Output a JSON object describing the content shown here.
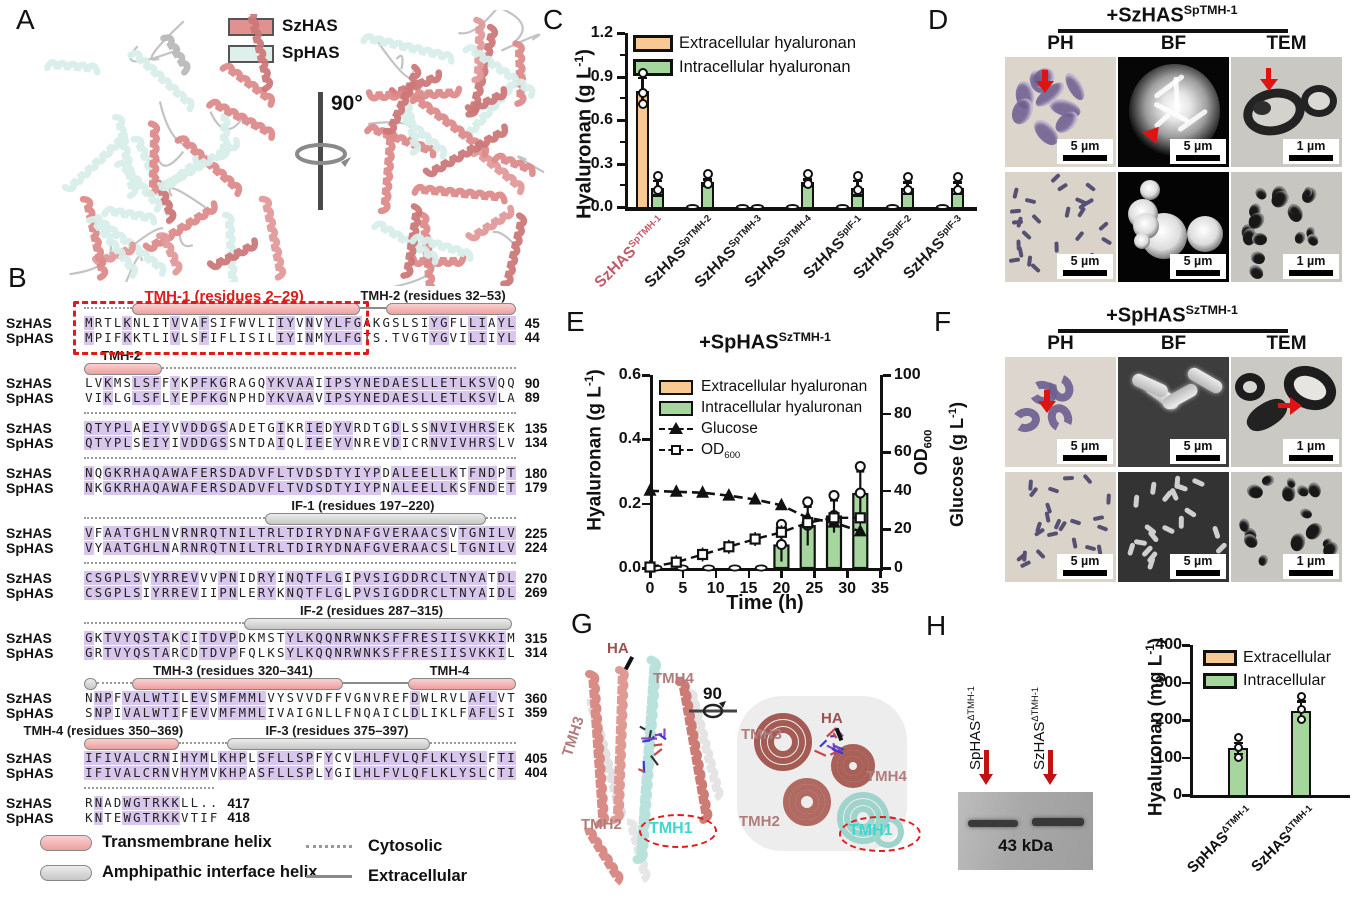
{
  "panel_labels": {
    "a": "A",
    "b": "B",
    "c": "C",
    "d": "D",
    "e": "E",
    "f": "F",
    "g": "G",
    "h": "H"
  },
  "panel_a": {
    "legend": [
      {
        "label": "SzHAS",
        "color": "#e29191"
      },
      {
        "label": "SpHAS",
        "color": "#ddf0ec"
      }
    ],
    "rotation_label": "90°"
  },
  "alignment": {
    "row_names": [
      "SzHAS",
      "SpHAS"
    ],
    "highlight_color": "#d8c6ec",
    "groups": [
      {
        "labels": [
          {
            "text": "TMH-1 (residues 2–29)",
            "color": "#e01b1b",
            "x": 14,
            "size": 15
          },
          {
            "text": "TMH-2 (residues 32–53)",
            "color": "#1a1a1a",
            "x": 64,
            "size": 13
          }
        ],
        "track": [
          {
            "type": "dots",
            "s": 0,
            "e": 11
          },
          {
            "type": "tmh",
            "s": 11,
            "e": 64
          },
          {
            "type": "solid",
            "s": 64,
            "e": 70
          },
          {
            "type": "tmh",
            "s": 70,
            "e": 100
          }
        ],
        "redbox": [
          -1.5,
          64
        ],
        "rows": [
          {
            "seq": "MRTLKNLITVVAFSIFWVLIIYVNVYLFGAKGSLSIYGFLLIAYL",
            "num": "45"
          },
          {
            "seq": "MPIFKKTLIVLSFIFLISILIYINMYLFGTS.TVGTYGVILIIYL",
            "num": "44"
          }
        ]
      },
      {
        "labels": [
          {
            "text": "TMH-2",
            "color": "#1a1a1a",
            "x": 4,
            "size": 13
          }
        ],
        "track": [
          {
            "type": "tmh",
            "s": 0,
            "e": 18
          },
          {
            "type": "dots",
            "s": 18,
            "e": 100
          }
        ],
        "rows": [
          {
            "seq": "LVKMSLSFFYKPFKGRAGQYKVAAIIPSYNEDAESLLETLKSVQQ",
            "num": "90"
          },
          {
            "seq": "VIKLGLSFLYEPFKGNPHDYKVAAVIPSYNEDAESLLETLKSVLA",
            "num": "89"
          }
        ]
      },
      {
        "labels": [],
        "track": [
          {
            "type": "dots",
            "s": 0,
            "e": 100
          }
        ],
        "rows": [
          {
            "seq": "QTYPLAEIYVVDDGSADETGIKRIEDYVRDTGDLSSNVIVHRSEK",
            "num": "135"
          },
          {
            "seq": "QTYPLSEIYIVDDGSSNTDAIQLIEEYVNREVDICRNVIVHRSLV",
            "num": "134"
          }
        ]
      },
      {
        "labels": [],
        "track": [
          {
            "type": "dots",
            "s": 0,
            "e": 100
          }
        ],
        "rows": [
          {
            "seq": "NQGKRHAQAWAFERSDADVFLTVDSDTYIYPDALEELLKTFNDPT",
            "num": "180"
          },
          {
            "seq": "NKGKRHAQAWAFERSDADVFLTVDSDTYIYPNALEELLKSFNDET",
            "num": "179"
          }
        ]
      },
      {
        "labels": [
          {
            "text": "IF-1 (residues 197–220)",
            "color": "#1a1a1a",
            "x": 48,
            "size": 13
          }
        ],
        "track": [
          {
            "type": "dots",
            "s": 0,
            "e": 42
          },
          {
            "type": "if",
            "s": 42,
            "e": 93
          },
          {
            "type": "dots",
            "s": 93,
            "e": 100
          }
        ],
        "rows": [
          {
            "seq": "VFAATGHLNVRNRQTNILTRLTDIRYDNAFGVERAACSVTGNILV",
            "num": "225"
          },
          {
            "seq": "VYAATGHLNARNRQTNILTRLTDIRYDNAFGVERAACSLTGNILV",
            "num": "224"
          }
        ]
      },
      {
        "labels": [],
        "track": [
          {
            "type": "dots",
            "s": 0,
            "e": 100
          }
        ],
        "rows": [
          {
            "seq": "CSGPLSVYRREVVVPNIDRYINQTFLGIPVSIGDDRCLTNYATDL",
            "num": "270"
          },
          {
            "seq": "CSGPLSIYRREVIIPNLERYKNQTFLGLPVSIGDDRCLTNYAIDL",
            "num": "269"
          }
        ]
      },
      {
        "labels": [
          {
            "text": "IF-2 (residues 287–315)",
            "color": "#1a1a1a",
            "x": 50,
            "size": 13
          }
        ],
        "track": [
          {
            "type": "dots",
            "s": 0,
            "e": 37
          },
          {
            "type": "if",
            "s": 37,
            "e": 99
          }
        ],
        "rows": [
          {
            "seq": "GKTVYQSTAKCITDVPDKMSTYLKQQNRWNKSFFRESIISVKKIM",
            "num": "315"
          },
          {
            "seq": "GRTVYQSTARCDTDVPFQLKSYLKQQNRWNKSFFRESIISVKKIL",
            "num": "314"
          }
        ]
      },
      {
        "labels": [
          {
            "text": "TMH-3 (residues 320–341)",
            "color": "#1a1a1a",
            "x": 16,
            "size": 13
          },
          {
            "text": "TMH-4",
            "color": "#1a1a1a",
            "x": 80,
            "size": 13
          }
        ],
        "track": [
          {
            "type": "if",
            "s": 0,
            "e": 3
          },
          {
            "type": "dots",
            "s": 3,
            "e": 11
          },
          {
            "type": "tmh",
            "s": 11,
            "e": 60
          },
          {
            "type": "solid",
            "s": 60,
            "e": 75
          },
          {
            "type": "tmh",
            "s": 75,
            "e": 100
          }
        ],
        "rows": [
          {
            "seq": "NNPFVALWTILEVSMFMMLVYSVVDFFVGNVREFDWLRVLAFLVT",
            "num": "360"
          },
          {
            "seq": "SNPIVALWTIFEVVMFMMLIVAIGNLLFNQAICLDLIKLFAFLSI",
            "num": "359"
          }
        ]
      },
      {
        "labels": [
          {
            "text": "TMH-4 (residues 350–369)",
            "color": "#1a1a1a",
            "x": -14,
            "size": 13
          },
          {
            "text": "IF-3 (residues 375–397)",
            "color": "#1a1a1a",
            "x": 42,
            "size": 13
          }
        ],
        "track": [
          {
            "type": "tmh",
            "s": 0,
            "e": 22
          },
          {
            "type": "dots",
            "s": 22,
            "e": 33
          },
          {
            "type": "if",
            "s": 33,
            "e": 80
          },
          {
            "type": "dots",
            "s": 80,
            "e": 100
          }
        ],
        "rows": [
          {
            "seq": "IFIVALCRNIHYMLKHPLSFLLSPFYCVLHLFVLQFLKLYSLFTI",
            "num": "405"
          },
          {
            "seq": "IFIVALCRNVHYMVKHPASFLLSPLYGILHLFVLQFLKLYSLCTI",
            "num": "404"
          }
        ]
      },
      {
        "labels": [],
        "track": [
          {
            "type": "dots",
            "s": 0,
            "e": 30
          }
        ],
        "rows": [
          {
            "seq": "RNADWGTRKKLL..",
            "num": "417"
          },
          {
            "seq": "KNTEWGTRKKVTIF",
            "num": "418"
          }
        ]
      }
    ],
    "legend": [
      {
        "swatch": "tmh",
        "label": "Transmembrane helix"
      },
      {
        "swatch": "if",
        "label": "Amphipathic interface helix"
      },
      {
        "swatch": "dots",
        "label": "Cytosolic"
      },
      {
        "swatch": "solid",
        "label": "Extracellular"
      }
    ]
  },
  "chart_c": {
    "type": "bar",
    "ylabel": "Hyaluronan (g L^{-1})",
    "ylim": [
      0,
      1.2
    ],
    "yticks": [
      "0.0",
      "0.3",
      "0.6",
      "0.9",
      "1.2"
    ],
    "legend": [
      "Extracellular hyaluronan",
      "Intracellular hyaluronan"
    ],
    "colors": {
      "extracellular": "#f8c993",
      "intracellular": "#a6d69e"
    },
    "categories": [
      "SzHAS^{SpTMH-1}",
      "SzHAS^{SpTMH-2}",
      "SzHAS^{SpTMH-3}",
      "SzHAS^{SpTMH-4}",
      "SzHAS^{SpIF-1}",
      "SzHAS^{SpIF-2}",
      "SzHAS^{SpIF-3}"
    ],
    "category_colors": [
      "#c05a6a",
      "#1a1a1a",
      "#1a1a1a",
      "#1a1a1a",
      "#1a1a1a",
      "#1a1a1a",
      "#1a1a1a"
    ],
    "series": [
      {
        "name": "Extracellular hyaluronan",
        "values": [
          0.8,
          0,
          0,
          0,
          0,
          0,
          0
        ],
        "err": [
          0.09,
          0,
          0,
          0,
          0,
          0,
          0
        ]
      },
      {
        "name": "Intracellular hyaluronan",
        "values": [
          0.13,
          0.17,
          0,
          0.17,
          0.13,
          0.13,
          0.13
        ],
        "err": [
          0.05,
          0.02,
          0,
          0.02,
          0.05,
          0.04,
          0.04
        ]
      }
    ]
  },
  "panel_d": {
    "title": "+SzHAS^{SpTMH-1}",
    "columns": [
      "PH",
      "BF",
      "TEM"
    ],
    "scale_labels": [
      [
        "5 µm",
        "5 µm",
        "1 µm"
      ],
      [
        "5 µm",
        "5 µm",
        "1 µm"
      ]
    ]
  },
  "chart_e": {
    "type": "line+bar",
    "title": "+SpHAS^{SzTMH-1}",
    "ylabel_left": "Hyaluronan (g L^{-1})",
    "ylim_left": [
      0,
      0.6
    ],
    "yticks_left": [
      "0.0",
      "0.2",
      "0.4",
      "0.6"
    ],
    "ylabel_right": "OD_{600}",
    "ylabel_right2": "Glucose (g L^{-1})",
    "ylim_right": [
      0,
      100
    ],
    "yticks_right": [
      "0",
      "20",
      "40",
      "60",
      "80",
      "100"
    ],
    "xlabel": "Time (h)",
    "xlim": [
      0,
      35
    ],
    "xticks": [
      "0",
      "5",
      "10",
      "15",
      "20",
      "25",
      "30",
      "35"
    ],
    "legend": [
      "Extracellular hyaluronan",
      "Intracellular hyaluronan",
      "Glucose",
      "OD_{600}"
    ],
    "glucose": {
      "x": [
        0,
        4,
        8,
        12,
        16,
        20,
        24,
        28,
        32
      ],
      "y": [
        40,
        39.5,
        39,
        37.5,
        35.5,
        32.5,
        26,
        23.5,
        19
      ]
    },
    "od600": {
      "x": [
        0,
        4,
        8,
        12,
        16,
        20,
        24,
        28,
        32
      ],
      "y": [
        0.5,
        3,
        7,
        11,
        15,
        18.5,
        23.5,
        26,
        26
      ]
    },
    "intracellular_bars": {
      "x": [
        20,
        24,
        28,
        32
      ],
      "y": [
        0.07,
        0.13,
        0.16,
        0.23
      ],
      "err": [
        0.05,
        0.06,
        0.05,
        0.07
      ]
    },
    "extracellular_zero_x": [
      0,
      4,
      8,
      12,
      16
    ]
  },
  "panel_f": {
    "title": "+SpHAS^{SzTMH-1}",
    "columns": [
      "PH",
      "BF",
      "TEM"
    ],
    "scale_labels": [
      [
        "5 µm",
        "5 µm",
        "1 µm"
      ],
      [
        "5 µm",
        "5 µm",
        "1 µm"
      ]
    ]
  },
  "panel_g": {
    "rotation_label": "90",
    "labels_left": {
      "ha": "HA",
      "tmh4": "TMH4",
      "tmh3": "TMH3",
      "tmh2": "TMH2",
      "tmh1": "TMH1"
    },
    "labels_right": {
      "tmh3": "TMH3",
      "ha": "HA",
      "tmh4": "TMH4",
      "tmh2": "TMH2",
      "tmh1": "TMH1"
    },
    "tmh1_color": "#3fd6ce",
    "helix_label_color": "#b07d7d",
    "ha_color": "#9c5050"
  },
  "panel_h": {
    "blot": {
      "lanes": [
        "SpHAS^{ΔTMH-1}",
        "SzHAS^{ΔTMH-1}"
      ],
      "marker": "43 kDa"
    },
    "chart": {
      "type": "bar",
      "ylabel": "Hyaluronan (mg L^{-1})",
      "ylim": [
        0,
        400
      ],
      "yticks": [
        "0",
        "100",
        "200",
        "300",
        "400"
      ],
      "legend": [
        "Extracellular",
        "Intracellular"
      ],
      "colors": {
        "extracellular": "#f8c993",
        "intracellular": "#a6d69e"
      },
      "categories": [
        "SpHAS^{ΔTMH-1}",
        "SzHAS^{ΔTMH-1}"
      ],
      "values_intracellular": [
        125,
        225
      ],
      "err": [
        15,
        25
      ]
    }
  }
}
